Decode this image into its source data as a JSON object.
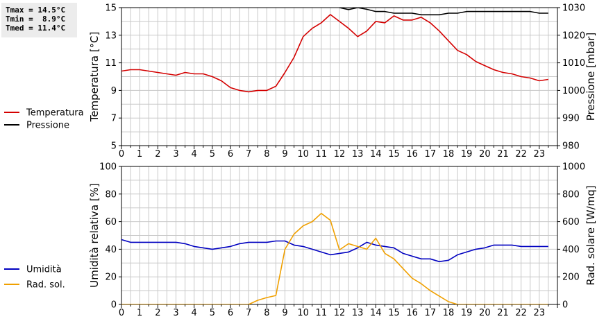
{
  "stats": {
    "tmax": "Tmax = 14.5°C",
    "tmin": "Tmin =  8.9°C",
    "tmed": "Tmed = 11.4°C"
  },
  "colors": {
    "temp": "#d40000",
    "press": "#000000",
    "hum": "#0000c0",
    "rad": "#f0a000",
    "grid": "#c8c8c8"
  },
  "chart_data": [
    {
      "type": "line",
      "ylabel": "Temperatura [°C]",
      "y2label": "Pressione [mbar]",
      "ylim": [
        5,
        15
      ],
      "yticks": [
        5,
        7,
        9,
        11,
        13,
        15
      ],
      "y2lim": [
        980,
        1030
      ],
      "y2ticks": [
        980,
        990,
        1000,
        1010,
        1020,
        1030
      ],
      "xlim": [
        0,
        24
      ],
      "xticks": [
        "0",
        "1",
        "2",
        "3",
        "4",
        "5",
        "6",
        "7",
        "8",
        "9",
        "10",
        "11",
        "12",
        "13",
        "14",
        "15",
        "16",
        "17",
        "18",
        "19",
        "20",
        "21",
        "22",
        "23"
      ],
      "legend": [
        "Temperatura",
        "Pressione"
      ],
      "series": [
        {
          "name": "Temperatura",
          "axis": "left",
          "color": "#d40000",
          "x": [
            0,
            0.5,
            1,
            1.5,
            2,
            2.5,
            3,
            3.5,
            4,
            4.5,
            5,
            5.5,
            6,
            6.5,
            7,
            7.5,
            8,
            8.5,
            9,
            9.5,
            10,
            10.5,
            11,
            11.5,
            12,
            12.5,
            13,
            13.5,
            14,
            14.5,
            15,
            15.5,
            16,
            16.5,
            17,
            17.5,
            18,
            18.5,
            19,
            19.5,
            20,
            20.5,
            21,
            21.5,
            22,
            22.5,
            23,
            23.5
          ],
          "y": [
            10.4,
            10.5,
            10.5,
            10.4,
            10.3,
            10.2,
            10.1,
            10.3,
            10.2,
            10.2,
            10.0,
            9.7,
            9.2,
            9.0,
            8.9,
            9.0,
            9.0,
            9.3,
            10.3,
            11.4,
            12.9,
            13.5,
            13.9,
            14.5,
            14.0,
            13.5,
            12.9,
            13.3,
            14.0,
            13.9,
            14.4,
            14.1,
            14.1,
            14.3,
            13.9,
            13.3,
            12.6,
            11.9,
            11.6,
            11.1,
            10.8,
            10.5,
            10.3,
            10.2,
            10.0,
            9.9,
            9.7,
            9.8
          ]
        },
        {
          "name": "Pressione",
          "axis": "right",
          "color": "#000000",
          "x": [
            12,
            12.5,
            13,
            13.5,
            14,
            14.5,
            15,
            15.5,
            16,
            16.5,
            17,
            17.5,
            18,
            18.5,
            19,
            19.5,
            20,
            20.5,
            21,
            21.5,
            22,
            22.5,
            23,
            23.5
          ],
          "y": [
            1030,
            1029.3,
            1030,
            1029.4,
            1028.6,
            1028.6,
            1028.0,
            1028.0,
            1028.0,
            1027.4,
            1027.4,
            1027.4,
            1028.0,
            1028.0,
            1028.6,
            1028.6,
            1028.6,
            1028.6,
            1028.6,
            1028.6,
            1028.6,
            1028.6,
            1028.0,
            1028.0
          ]
        }
      ]
    },
    {
      "type": "line",
      "ylabel": "Umidità relativa [%]",
      "y2label": "Rad. solare [W/mq]",
      "ylim": [
        0,
        100
      ],
      "yticks": [
        0,
        20,
        40,
        60,
        80,
        100
      ],
      "y2lim": [
        0,
        1000
      ],
      "y2ticks": [
        0,
        200,
        400,
        600,
        800,
        1000
      ],
      "xlim": [
        0,
        24
      ],
      "xticks": [
        "0",
        "1",
        "2",
        "3",
        "4",
        "5",
        "6",
        "7",
        "8",
        "9",
        "10",
        "11",
        "12",
        "13",
        "14",
        "15",
        "16",
        "17",
        "18",
        "19",
        "20",
        "21",
        "22",
        "23"
      ],
      "legend": [
        "Umidità",
        "Rad. sol."
      ],
      "series": [
        {
          "name": "Umidità",
          "axis": "left",
          "color": "#0000c0",
          "x": [
            0,
            0.5,
            1,
            1.5,
            2,
            2.5,
            3,
            3.5,
            4,
            4.5,
            5,
            5.5,
            6,
            6.5,
            7,
            7.5,
            8,
            8.5,
            9,
            9.5,
            10,
            10.5,
            11,
            11.5,
            12,
            12.5,
            13,
            13.5,
            14,
            14.5,
            15,
            15.5,
            16,
            16.5,
            17,
            17.5,
            18,
            18.5,
            19,
            19.5,
            20,
            20.5,
            21,
            21.5,
            22,
            22.5,
            23,
            23.5
          ],
          "y": [
            47,
            45,
            45,
            45,
            45,
            45,
            45,
            44,
            42,
            41,
            40,
            41,
            42,
            44,
            45,
            45,
            45,
            46,
            46,
            43,
            42,
            40,
            38,
            36,
            37,
            38,
            41,
            45,
            43,
            42,
            41,
            37,
            35,
            33,
            33,
            31,
            32,
            36,
            38,
            40,
            41,
            43,
            43,
            43,
            42,
            42,
            42,
            42
          ]
        },
        {
          "name": "Rad. sol.",
          "axis": "right",
          "color": "#f0a000",
          "x": [
            0,
            0.5,
            1,
            1.5,
            2,
            2.5,
            3,
            3.5,
            4,
            4.5,
            5,
            5.5,
            6,
            6.5,
            7,
            7.5,
            8,
            8.5,
            9,
            9.5,
            10,
            10.5,
            11,
            11.5,
            12,
            12.5,
            13,
            13.5,
            14,
            14.5,
            15,
            15.5,
            16,
            16.5,
            17,
            17.5,
            18,
            18.5,
            19,
            19.5,
            20,
            20.5,
            21,
            21.5,
            22,
            22.5,
            23,
            23.5
          ],
          "y": [
            0,
            0,
            0,
            0,
            0,
            0,
            0,
            0,
            0,
            0,
            0,
            0,
            0,
            0,
            0,
            30,
            50,
            65,
            400,
            510,
            570,
            600,
            660,
            610,
            395,
            440,
            420,
            400,
            480,
            370,
            330,
            260,
            190,
            150,
            100,
            60,
            20,
            0,
            0,
            0,
            0,
            0,
            0,
            0,
            0,
            0,
            0,
            0
          ]
        }
      ]
    }
  ]
}
